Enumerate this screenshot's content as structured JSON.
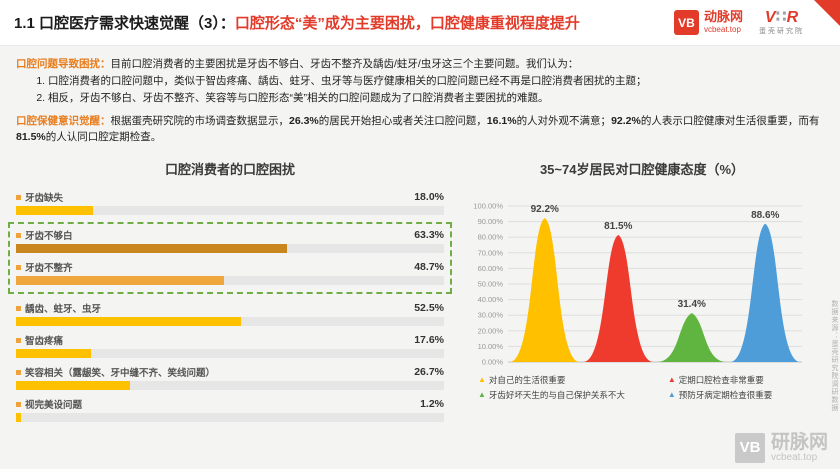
{
  "header": {
    "title_black": "1.1 口腔医疗需求快速觉醒（3）：",
    "title_red": "口腔形态“美”成为主要困扰，口腔健康重视程度提升",
    "logo_vcbeat": {
      "badge": "VB",
      "name": "动脉网",
      "url": "vcbeat.top"
    },
    "logo_research": {
      "mark_left": "V",
      "mark_dots": "∷",
      "mark_right": "R",
      "name": "蛋壳研究院"
    }
  },
  "intro": {
    "p1_label": "口腔问题导致困扰：",
    "p1_text": "目前口腔消费者的主要困扰是牙齿不够白、牙齿不整齐及龋齿/蛀牙/虫牙这三个主要问题。我们认为：",
    "p1_items": [
      "口腔消费者的口腔问题中，类似于智齿疼痛、龋齿、蛀牙、虫牙等与医疗健康相关的口腔问题已经不再是口腔消费者困扰的主题；",
      "相反，牙齿不够白、牙齿不整齐、笑容等与口腔形态“美”相关的口腔问题成为了口腔消费者主要困扰的难题。"
    ],
    "p2_label": "口腔保健意识觉醒：",
    "p2_segments": [
      {
        "text": "根据蛋壳研究院的市场调查数据显示，",
        "hl": false
      },
      {
        "text": "26.3%",
        "hl": true
      },
      {
        "text": "的居民开始担心或者关注口腔问题，",
        "hl": false
      },
      {
        "text": "16.1%",
        "hl": true
      },
      {
        "text": "的人对外观不满意；",
        "hl": false
      },
      {
        "text": "92.2%",
        "hl": true
      },
      {
        "text": "的人表示口腔健康对生活很重要，而有",
        "hl": false
      },
      {
        "text": "81.5%",
        "hl": true
      },
      {
        "text": "的人认同口腔定期检查。",
        "hl": false
      }
    ]
  },
  "chart_data": [
    {
      "type": "bar",
      "orientation": "horizontal",
      "title": "口腔消费者的口腔困扰",
      "categories": [
        "牙齿缺失",
        "牙齿不够白",
        "牙齿不整齐",
        "龋齿、蛀牙、虫牙",
        "智齿疼痛",
        "笑容相关（露龈笑、牙中缝不齐、笑线问题）",
        "视完美设问题"
      ],
      "values": [
        18.0,
        63.3,
        48.7,
        52.5,
        17.6,
        26.7,
        1.2
      ],
      "value_labels": [
        "18.0%",
        "63.3%",
        "48.7%",
        "52.5%",
        "17.6%",
        "26.7%",
        "1.2%"
      ],
      "bar_colors": [
        "#FFC000",
        "#C9861F",
        "#EFA63C",
        "#FFC000",
        "#FFC000",
        "#FFC000",
        "#FFC000"
      ],
      "highlight_indices": [
        1,
        2
      ],
      "highlight_box_color": "#6FAE46",
      "xlim": [
        0,
        100
      ],
      "grid": false
    },
    {
      "type": "area",
      "title": "35~74岁居民对口腔健康态度（%）",
      "series": [
        {
          "name": "对自己的生活很重要",
          "value": 92.2,
          "label": "92.2%",
          "color": "#FFC000"
        },
        {
          "name": "定期口腔检查非常重要",
          "value": 81.5,
          "label": "81.5%",
          "color": "#EE3B2E"
        },
        {
          "name": "牙齿好坏天生的与自己保护关系不大",
          "value": 31.4,
          "label": "31.4%",
          "color": "#5FB53F"
        },
        {
          "name": "预防牙病定期检查很重要",
          "value": 88.6,
          "label": "88.6%",
          "color": "#4E9CD8"
        }
      ],
      "y_ticks": [
        "100.00%",
        "90.00%",
        "80.00%",
        "70.00%",
        "60.00%",
        "50.00%",
        "40.00%",
        "30.00%",
        "20.00%",
        "10.00%",
        "0.00%"
      ],
      "ylim": [
        0,
        100
      ],
      "grid": true,
      "legend_position": "bottom"
    }
  ],
  "footer": {
    "watermark_badge": "VB",
    "watermark_name": "研脉网",
    "watermark_url": "vcbeat.top",
    "source_note": "数据来源：蛋壳研究院调研数据"
  }
}
